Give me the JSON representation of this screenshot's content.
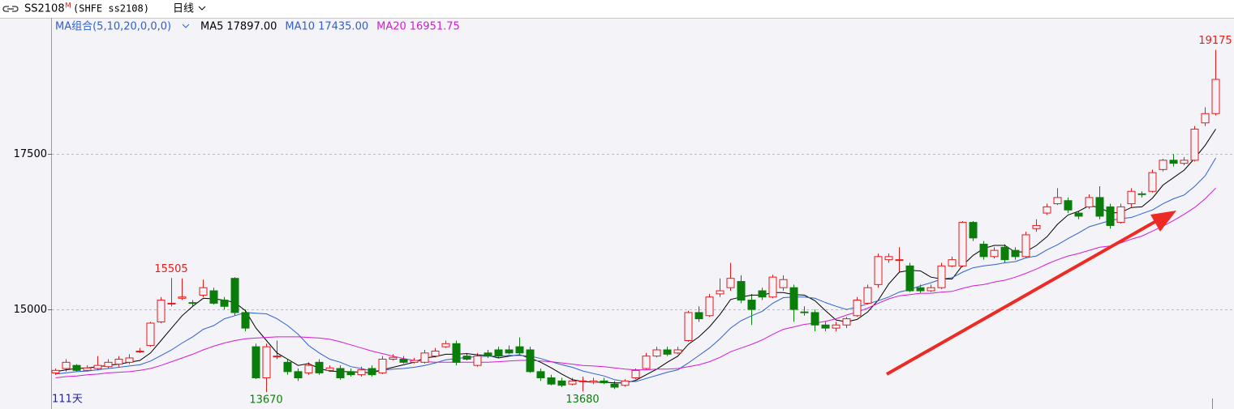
{
  "header": {
    "symbol": "SS2108",
    "badge": "M",
    "exchange": "(SHFE ss2108)",
    "period": "日线"
  },
  "chart_data": {
    "type": "candlestick",
    "ma_title": "MA组合(5,10,20,0,0,0)",
    "count_label": "111天",
    "ylim": [
      13425,
      19690
    ],
    "yticks": [
      15000,
      17500
    ],
    "grid": true,
    "up_color": "#e8191a",
    "down_color": "#0a7d0a",
    "open": [
      13980,
      14050,
      14100,
      14020,
      14050,
      14080,
      14120,
      14150,
      14320,
      14420,
      14800,
      15090,
      15180,
      15110,
      15230,
      15300,
      15150,
      15500,
      14950,
      14400,
      13900,
      14240,
      14150,
      14000,
      13980,
      14150,
      14020,
      14050,
      14000,
      13950,
      14050,
      13980,
      14200,
      14200,
      14150,
      14150,
      14250,
      14400,
      14450,
      14250,
      14100,
      14300,
      14350,
      14350,
      14400,
      14350,
      14000,
      13900,
      13850,
      13800,
      13840,
      13830,
      13850,
      13800,
      13780,
      13900,
      14050,
      14250,
      14350,
      14300,
      14500,
      14950,
      14900,
      15250,
      15350,
      15450,
      15150,
      15300,
      15200,
      15350,
      15350,
      14960,
      14950,
      14750,
      14700,
      14750,
      14900,
      15100,
      15400,
      15800,
      15790,
      15700,
      15350,
      15300,
      15350,
      15700,
      15700,
      16400,
      16050,
      15850,
      16000,
      15950,
      15850,
      16300,
      16550,
      16700,
      16750,
      16550,
      16650,
      16800,
      16650,
      16400,
      16700,
      16860,
      16900,
      17250,
      17400,
      17350,
      17400,
      18000,
      18150
    ],
    "high": [
      14050,
      14200,
      14120,
      14100,
      14250,
      14200,
      14250,
      14280,
      14380,
      14800,
      15200,
      15505,
      15500,
      15150,
      15480,
      15350,
      15200,
      15520,
      15000,
      14450,
      14450,
      14500,
      14200,
      14050,
      14150,
      14200,
      14100,
      14100,
      14050,
      14080,
      14100,
      14250,
      14280,
      14250,
      14220,
      14350,
      14380,
      14500,
      14500,
      14300,
      14300,
      14350,
      14400,
      14420,
      14550,
      14400,
      14050,
      13950,
      13900,
      13900,
      13920,
      13900,
      13900,
      13850,
      13880,
      14050,
      14300,
      14400,
      14400,
      14400,
      14980,
      15050,
      15250,
      15500,
      15750,
      15550,
      15250,
      15350,
      15560,
      15550,
      15400,
      15050,
      15000,
      14800,
      14800,
      14880,
      15200,
      15400,
      15900,
      15900,
      16000,
      15750,
      15400,
      15400,
      15750,
      15850,
      16420,
      16420,
      16100,
      16000,
      16050,
      16000,
      16250,
      16450,
      16700,
      16950,
      16800,
      16580,
      16850,
      16980,
      16700,
      16700,
      16950,
      16900,
      17250,
      17420,
      17500,
      17450,
      17950,
      18250,
      19175
    ],
    "low": [
      13950,
      14000,
      14000,
      14000,
      14020,
      14050,
      14080,
      14120,
      14300,
      14400,
      14780,
      15050,
      15150,
      15050,
      15200,
      15080,
      15000,
      14900,
      14650,
      13880,
      13670,
      14200,
      13950,
      13850,
      13950,
      13950,
      14000,
      13870,
      13920,
      13920,
      13920,
      13960,
      14180,
      14130,
      14130,
      14130,
      14230,
      14380,
      14100,
      14180,
      14080,
      14220,
      14220,
      14280,
      14280,
      13980,
      13850,
      13780,
      13750,
      13780,
      13680,
      13800,
      13800,
      13720,
      13760,
      13880,
      14030,
      14230,
      14250,
      14280,
      14480,
      14800,
      14880,
      15200,
      15300,
      15100,
      14750,
      15150,
      15180,
      15300,
      14800,
      14900,
      14650,
      14650,
      14650,
      14700,
      14880,
      15080,
      15350,
      15750,
      15600,
      15280,
      15270,
      15280,
      15330,
      15680,
      15680,
      16100,
      15800,
      15820,
      15750,
      15800,
      15830,
      16250,
      16520,
      16680,
      16550,
      16450,
      16620,
      16450,
      16300,
      16380,
      16650,
      16800,
      16880,
      17220,
      17300,
      17320,
      17380,
      17950,
      18120
    ],
    "close": [
      14020,
      14150,
      14020,
      14060,
      14100,
      14150,
      14200,
      14220,
      14330,
      14780,
      15150,
      15100,
      15200,
      15100,
      15350,
      15100,
      15050,
      14950,
      14700,
      13900,
      14400,
      14250,
      14000,
      13900,
      14100,
      13980,
      14060,
      13900,
      13950,
      14030,
      13950,
      14200,
      14230,
      14150,
      14180,
      14300,
      14330,
      14450,
      14150,
      14200,
      14250,
      14250,
      14250,
      14300,
      14300,
      14000,
      13900,
      13800,
      13780,
      13850,
      13850,
      13850,
      13820,
      13750,
      13850,
      14020,
      14250,
      14350,
      14280,
      14350,
      14950,
      14850,
      15200,
      15300,
      15500,
      15150,
      15000,
      15200,
      15520,
      15480,
      15000,
      14950,
      14750,
      14700,
      14750,
      14850,
      15150,
      15350,
      15850,
      15850,
      15800,
      15300,
      15300,
      15350,
      15700,
      15800,
      16400,
      16150,
      15850,
      15950,
      15800,
      15850,
      16200,
      16350,
      16650,
      16800,
      16600,
      16500,
      16800,
      16500,
      16350,
      16650,
      16900,
      16850,
      17200,
      17400,
      17350,
      17400,
      17900,
      18150,
      18700
    ],
    "annotations": [
      {
        "value": 15505,
        "label": "15505"
      },
      {
        "value": 13670,
        "label": "13670"
      },
      {
        "value": 13680,
        "label": "13680"
      },
      {
        "value": 19175,
        "label": "19175"
      }
    ],
    "series": [
      {
        "name": "MA5",
        "color": "#000000",
        "value_label": "17897.00",
        "values": [
          14000,
          14030,
          14050,
          14060,
          14080,
          14100,
          14120,
          14150,
          14180,
          14300,
          14500,
          14700,
          14900,
          15050,
          15180,
          15170,
          15150,
          15110,
          14980,
          14700,
          14500,
          14300,
          14200,
          14100,
          14130,
          14050,
          14010,
          14000,
          14000,
          13990,
          13980,
          14030,
          14070,
          14110,
          14150,
          14220,
          14240,
          14280,
          14280,
          14290,
          14270,
          14260,
          14220,
          14250,
          14270,
          14220,
          14150,
          14060,
          13960,
          13870,
          13840,
          13830,
          13830,
          13820,
          13820,
          13860,
          13950,
          14040,
          14150,
          14250,
          14440,
          14560,
          14720,
          14920,
          15160,
          15200,
          15230,
          15230,
          15270,
          15270,
          15240,
          15230,
          15140,
          14980,
          14830,
          14800,
          14840,
          14960,
          15150,
          15410,
          15600,
          15630,
          15620,
          15520,
          15490,
          15490,
          15710,
          15870,
          15980,
          16030,
          16030,
          15920,
          15930,
          16030,
          16170,
          16370,
          16520,
          16580,
          16670,
          16640,
          16550,
          16560,
          16640,
          16650,
          16790,
          17000,
          17120,
          17240,
          17430,
          17640,
          17900
        ]
      },
      {
        "name": "MA10",
        "color": "#2d5fd2",
        "value_label": "17435.00",
        "values": [
          13960,
          13980,
          14000,
          14010,
          14030,
          14050,
          14070,
          14090,
          14110,
          14170,
          14260,
          14350,
          14460,
          14560,
          14680,
          14740,
          14850,
          14900,
          14950,
          14940,
          14930,
          14850,
          14740,
          14600,
          14420,
          14300,
          14200,
          14150,
          14080,
          14050,
          14010,
          14020,
          14040,
          14050,
          14070,
          14100,
          14140,
          14190,
          14210,
          14230,
          14240,
          14250,
          14250,
          14260,
          14260,
          14250,
          14210,
          14160,
          14110,
          14070,
          14010,
          13970,
          13930,
          13870,
          13840,
          13840,
          13890,
          13940,
          13990,
          14030,
          14140,
          14260,
          14380,
          14530,
          14700,
          14820,
          14900,
          14970,
          15100,
          15190,
          15200,
          15200,
          15180,
          15110,
          15050,
          15000,
          15040,
          15090,
          15140,
          15200,
          15280,
          15320,
          15380,
          15430,
          15490,
          15510,
          15600,
          15670,
          15700,
          15720,
          15750,
          15770,
          15830,
          15860,
          15960,
          16040,
          16140,
          16230,
          16330,
          16380,
          16430,
          16460,
          16480,
          16540,
          16600,
          16700,
          16780,
          16840,
          16980,
          17150,
          17435
        ]
      },
      {
        "name": "MA20",
        "color": "#d61ad6",
        "value_label": "16951.75",
        "values": [
          13900,
          13920,
          13930,
          13950,
          13960,
          13980,
          13990,
          14000,
          14020,
          14050,
          14100,
          14160,
          14220,
          14280,
          14350,
          14410,
          14460,
          14500,
          14530,
          14540,
          14550,
          14560,
          14560,
          14560,
          14550,
          14540,
          14520,
          14480,
          14430,
          14380,
          14330,
          14290,
          14250,
          14210,
          14180,
          14160,
          14150,
          14150,
          14150,
          14150,
          14150,
          14150,
          14160,
          14170,
          14180,
          14180,
          14170,
          14160,
          14140,
          14120,
          14100,
          14090,
          14080,
          14060,
          14040,
          14030,
          14030,
          14040,
          14040,
          14050,
          14080,
          14110,
          14160,
          14230,
          14320,
          14380,
          14440,
          14510,
          14600,
          14680,
          14720,
          14760,
          14780,
          14810,
          14850,
          14910,
          14960,
          15020,
          15100,
          15170,
          15220,
          15240,
          15260,
          15260,
          15280,
          15290,
          15340,
          15380,
          15400,
          15440,
          15470,
          15520,
          15580,
          15650,
          15730,
          15800,
          15860,
          15900,
          15950,
          16000,
          16020,
          16070,
          16130,
          16180,
          16260,
          16340,
          16430,
          16530,
          16640,
          16780,
          16952
        ]
      }
    ]
  }
}
